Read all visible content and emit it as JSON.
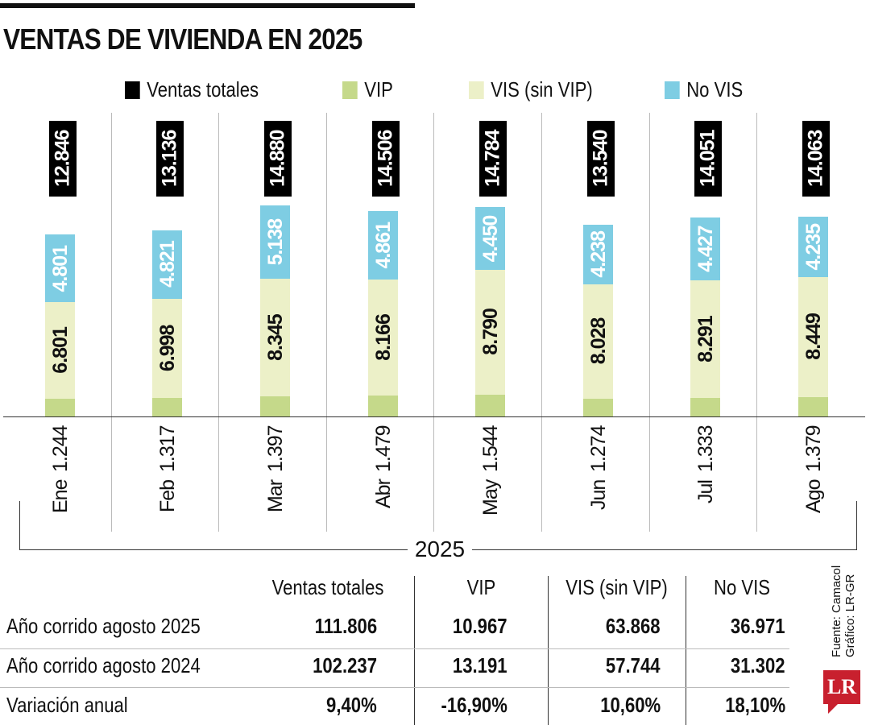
{
  "title": "VENTAS DE VIVIENDA EN 2025",
  "chart_data": {
    "type": "bar",
    "stacked": true,
    "title": "VENTAS DE VIVIENDA EN 2025",
    "xlabel": "2025",
    "categories": [
      "Ene",
      "Feb",
      "Mar",
      "Abr",
      "May",
      "Jun",
      "Jul",
      "Ago"
    ],
    "legend_position": "top",
    "series": [
      {
        "name": "VIP",
        "color": "#c5d98a",
        "values": [
          1244,
          1317,
          1397,
          1479,
          1544,
          1274,
          1333,
          1379
        ],
        "labels": [
          "1.244",
          "1.317",
          "1.397",
          "1.479",
          "1.544",
          "1.274",
          "1.333",
          "1.379"
        ]
      },
      {
        "name": "VIS (sin VIP)",
        "color": "#ecf0c8",
        "values": [
          6801,
          6998,
          8345,
          8166,
          8790,
          8028,
          8291,
          8449
        ],
        "labels": [
          "6.801",
          "6.998",
          "8.345",
          "8.166",
          "8.790",
          "8.028",
          "8.291",
          "8.449"
        ]
      },
      {
        "name": "No VIS",
        "color": "#7ecde3",
        "values": [
          4801,
          4821,
          5138,
          4861,
          4450,
          4238,
          4427,
          4235
        ],
        "labels": [
          "4.801",
          "4.821",
          "5.138",
          "4.861",
          "4.450",
          "4.238",
          "4.427",
          "4.235"
        ]
      }
    ],
    "totals": {
      "name": "Ventas totales",
      "color": "#000000",
      "values": [
        12846,
        13136,
        14880,
        14506,
        14784,
        13540,
        14051,
        14063
      ],
      "labels": [
        "12.846",
        "13.136",
        "14.880",
        "14.506",
        "14.784",
        "13.540",
        "14.051",
        "14.063"
      ]
    },
    "grid": false
  },
  "table": {
    "headers": [
      "Ventas totales",
      "VIP",
      "VIS (sin VIP)",
      "No VIS"
    ],
    "rows": [
      {
        "label": "Año corrido agosto 2025",
        "values": [
          "111.806",
          "10.967",
          "63.868",
          "36.971"
        ]
      },
      {
        "label": "Año corrido agosto 2024",
        "values": [
          "102.237",
          "13.191",
          "57.744",
          "31.302"
        ]
      },
      {
        "label": "Variación anual",
        "values": [
          "9,40%",
          "-16,90%",
          "10,60%",
          "18,10%"
        ]
      }
    ]
  },
  "source": {
    "line1": "Fuente: Camacol",
    "line2": "Gráfico: LR-GR"
  },
  "logo": "LR"
}
